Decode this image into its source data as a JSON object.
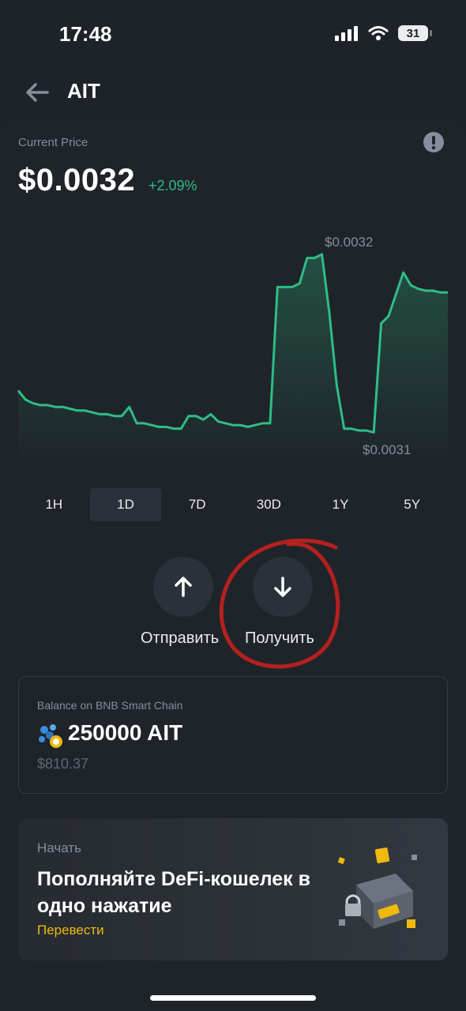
{
  "status_bar": {
    "time": "17:48",
    "battery": "31"
  },
  "header": {
    "title": "AIT"
  },
  "price": {
    "label": "Current Price",
    "value": "$0.0032",
    "change": "+2.09%"
  },
  "chart_data": {
    "type": "line",
    "title": "",
    "xlabel": "",
    "ylabel": "",
    "annotations": {
      "high": "$0.0032",
      "low": "$0.0031"
    },
    "series": [
      {
        "values": [
          0.003125,
          0.00312,
          0.003118,
          0.003117,
          0.003117,
          0.003116,
          0.003116,
          0.003115,
          0.003114,
          0.003114,
          0.003113,
          0.003112,
          0.003112,
          0.003111,
          0.003111,
          0.003116,
          0.003107,
          0.003107,
          0.003106,
          0.003105,
          0.003105,
          0.003104,
          0.003104,
          0.003111,
          0.003111,
          0.003109,
          0.003112,
          0.003108,
          0.003107,
          0.003106,
          0.003106,
          0.003105,
          0.003106,
          0.003107,
          0.003107,
          0.003182,
          0.003182,
          0.003182,
          0.003184,
          0.003198,
          0.003198,
          0.0032,
          0.003168,
          0.003128,
          0.003104,
          0.003104,
          0.003103,
          0.003103,
          0.003102,
          0.003162,
          0.003166,
          0.003178,
          0.00319,
          0.003183,
          0.003181,
          0.00318,
          0.00318,
          0.003179,
          0.003179
        ]
      }
    ],
    "grid": false,
    "legend": "none"
  },
  "timeframes": {
    "items": [
      "1H",
      "1D",
      "7D",
      "30D",
      "1Y",
      "5Y"
    ],
    "active": "1D"
  },
  "actions": {
    "send": "Отправить",
    "receive": "Получить"
  },
  "balance": {
    "label": "Balance on BNB Smart Chain",
    "amount": "250000 AIT",
    "usd": "$810.37"
  },
  "promo": {
    "kicker": "Начать",
    "title": "Пополняйте DeFi-кошелек в одно нажатие",
    "link": "Перевести"
  },
  "colors": {
    "accent_green": "#2ebd85",
    "accent_yellow": "#f0b90b",
    "annotation_red": "#b3211e"
  }
}
